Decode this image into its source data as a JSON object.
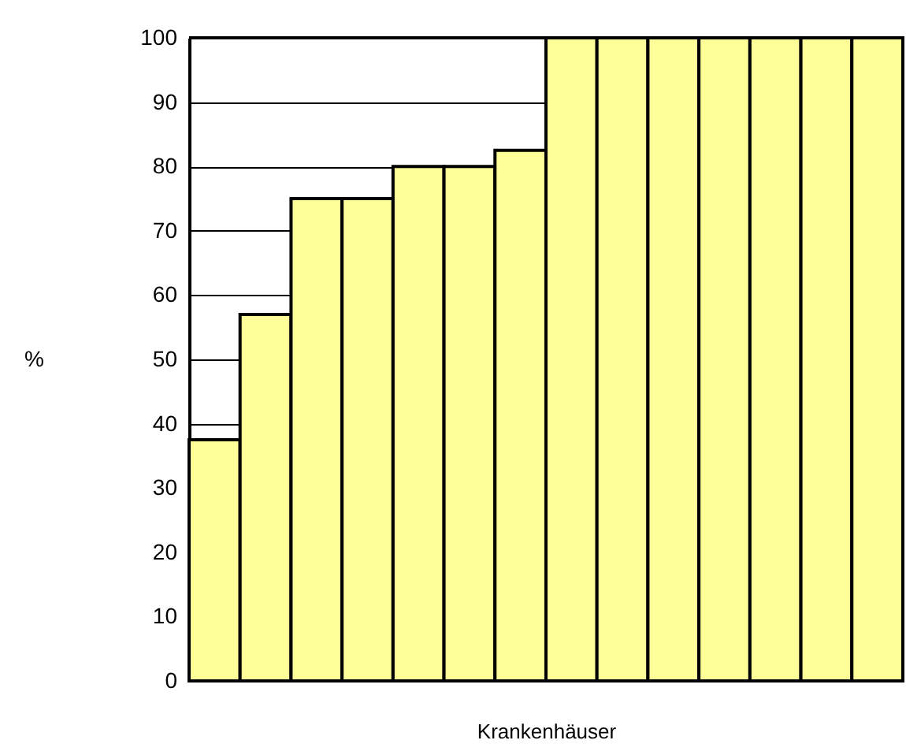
{
  "chart_data": {
    "type": "bar",
    "xlabel": "Krankenhäuser",
    "ylabel": "%",
    "categories": [
      null,
      null,
      null,
      null,
      null,
      null,
      null,
      null,
      null,
      null,
      null,
      null,
      null,
      null
    ],
    "values": [
      37.5,
      57,
      75,
      75,
      80,
      80,
      82.5,
      100,
      100,
      100,
      100,
      100,
      100,
      100
    ],
    "color": "#ffff99",
    "ylim": [
      0,
      100
    ],
    "yticks": [
      0,
      10,
      20,
      30,
      40,
      50,
      60,
      70,
      80,
      90,
      100
    ],
    "grid": "y"
  }
}
